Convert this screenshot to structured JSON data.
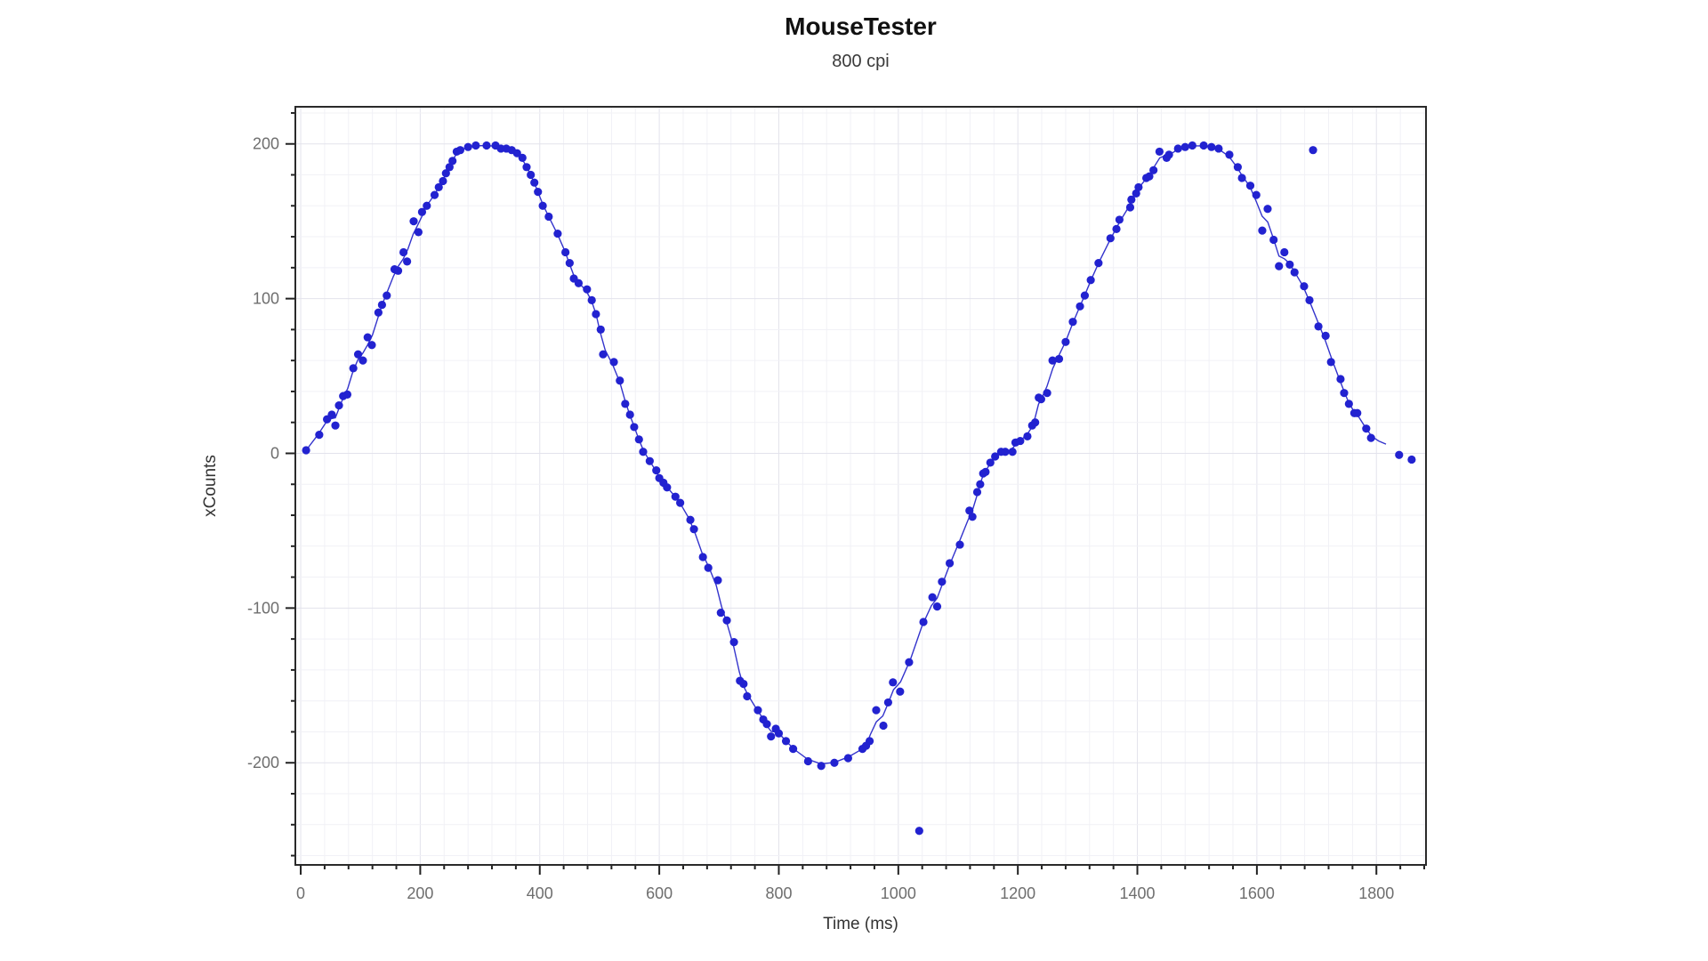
{
  "chart_data": {
    "type": "scatter",
    "title": "MouseTester",
    "subtitle": "800 cpi",
    "xlabel": "Time (ms)",
    "ylabel": "xCounts",
    "xlim": [
      -9,
      1883
    ],
    "ylim": [
      -266,
      224
    ],
    "x_major_step": 200,
    "x_minor_step": 40,
    "y_major_step": 100,
    "y_minor_step": 20,
    "x_tick_labels": [
      "0",
      "200",
      "400",
      "600",
      "800",
      "1000",
      "1200",
      "1400",
      "1600",
      "1800"
    ],
    "y_tick_labels": [
      "-200",
      "-100",
      "0",
      "100",
      "200"
    ],
    "grid": true,
    "legend": "none",
    "colors": {
      "series": "#2222d0",
      "line": "#3333cc",
      "grid_minor": "#f1f1f6",
      "grid_major": "#e3e3ec",
      "border": "#2a2a2a",
      "tick": "#222222",
      "tick_label": "#6e6e6e"
    },
    "series": [
      {
        "name": "xCounts",
        "marker": "circle",
        "points": [
          [
            9,
            2
          ],
          [
            31,
            12
          ],
          [
            44,
            22
          ],
          [
            52,
            25
          ],
          [
            58,
            18
          ],
          [
            64,
            31
          ],
          [
            71,
            37
          ],
          [
            78,
            38
          ],
          [
            88,
            55
          ],
          [
            96,
            64
          ],
          [
            104,
            60
          ],
          [
            112,
            75
          ],
          [
            119,
            70
          ],
          [
            130,
            91
          ],
          [
            136,
            96
          ],
          [
            144,
            102
          ],
          [
            157,
            119
          ],
          [
            163,
            118
          ],
          [
            172,
            130
          ],
          [
            178,
            124
          ],
          [
            189,
            150
          ],
          [
            197,
            143
          ],
          [
            203,
            156
          ],
          [
            211,
            160
          ],
          [
            224,
            167
          ],
          [
            231,
            172
          ],
          [
            238,
            176
          ],
          [
            243,
            181
          ],
          [
            249,
            185
          ],
          [
            254,
            189
          ],
          [
            261,
            195
          ],
          [
            267,
            196
          ],
          [
            280,
            198
          ],
          [
            293,
            199
          ],
          [
            311,
            199
          ],
          [
            326,
            199
          ],
          [
            335,
            197
          ],
          [
            344,
            197
          ],
          [
            353,
            196
          ],
          [
            362,
            194
          ],
          [
            371,
            191
          ],
          [
            378,
            185
          ],
          [
            385,
            180
          ],
          [
            391,
            175
          ],
          [
            397,
            169
          ],
          [
            405,
            160
          ],
          [
            415,
            153
          ],
          [
            430,
            142
          ],
          [
            443,
            130
          ],
          [
            450,
            123
          ],
          [
            457,
            113
          ],
          [
            465,
            110
          ],
          [
            479,
            106
          ],
          [
            487,
            99
          ],
          [
            494,
            90
          ],
          [
            502,
            80
          ],
          [
            506,
            64
          ],
          [
            524,
            59
          ],
          [
            534,
            47
          ],
          [
            543,
            32
          ],
          [
            551,
            25
          ],
          [
            558,
            17
          ],
          [
            566,
            9
          ],
          [
            573,
            1
          ],
          [
            584,
            -5
          ],
          [
            595,
            -11
          ],
          [
            600,
            -16
          ],
          [
            607,
            -19
          ],
          [
            613,
            -22
          ],
          [
            627,
            -28
          ],
          [
            635,
            -32
          ],
          [
            652,
            -43
          ],
          [
            658,
            -49
          ],
          [
            673,
            -67
          ],
          [
            682,
            -74
          ],
          [
            698,
            -82
          ],
          [
            703,
            -103
          ],
          [
            713,
            -108
          ],
          [
            725,
            -122
          ],
          [
            735,
            -147
          ],
          [
            741,
            -149
          ],
          [
            747,
            -157
          ],
          [
            765,
            -166
          ],
          [
            774,
            -172
          ],
          [
            780,
            -175
          ],
          [
            787,
            -183
          ],
          [
            795,
            -178
          ],
          [
            800,
            -181
          ],
          [
            812,
            -186
          ],
          [
            824,
            -191
          ],
          [
            849,
            -199
          ],
          [
            871,
            -202
          ],
          [
            893,
            -200
          ],
          [
            916,
            -197
          ],
          [
            940,
            -191
          ],
          [
            946,
            -189
          ],
          [
            952,
            -186
          ],
          [
            963,
            -166
          ],
          [
            975,
            -176
          ],
          [
            983,
            -161
          ],
          [
            991,
            -148
          ],
          [
            1003,
            -154
          ],
          [
            1018,
            -135
          ],
          [
            1042,
            -109
          ],
          [
            1057,
            -93
          ],
          [
            1065,
            -99
          ],
          [
            1073,
            -83
          ],
          [
            1086,
            -71
          ],
          [
            1103,
            -59
          ],
          [
            1119,
            -37
          ],
          [
            1124,
            -41
          ],
          [
            1132,
            -25
          ],
          [
            1137,
            -20
          ],
          [
            1142,
            -13
          ],
          [
            1146,
            -12
          ],
          [
            1154,
            -6
          ],
          [
            1162,
            -2
          ],
          [
            1172,
            1
          ],
          [
            1179,
            1
          ],
          [
            1191,
            1
          ],
          [
            1196,
            7
          ],
          [
            1204,
            8
          ],
          [
            1216,
            11
          ],
          [
            1224,
            18
          ],
          [
            1229,
            20
          ],
          [
            1235,
            36
          ],
          [
            1239,
            35
          ],
          [
            1249,
            39
          ],
          [
            1258,
            60
          ],
          [
            1269,
            61
          ],
          [
            1280,
            72
          ],
          [
            1292,
            85
          ],
          [
            1304,
            95
          ],
          [
            1312,
            102
          ],
          [
            1322,
            112
          ],
          [
            1335,
            123
          ],
          [
            1355,
            139
          ],
          [
            1365,
            145
          ],
          [
            1370,
            151
          ],
          [
            1388,
            159
          ],
          [
            1390,
            164
          ],
          [
            1398,
            168
          ],
          [
            1402,
            172
          ],
          [
            1415,
            178
          ],
          [
            1420,
            179
          ],
          [
            1427,
            183
          ],
          [
            1437,
            195
          ],
          [
            1449,
            191
          ],
          [
            1453,
            193
          ],
          [
            1468,
            197
          ],
          [
            1480,
            198
          ],
          [
            1492,
            199
          ],
          [
            1511,
            199
          ],
          [
            1524,
            198
          ],
          [
            1536,
            197
          ],
          [
            1554,
            193
          ],
          [
            1568,
            185
          ],
          [
            1575,
            178
          ],
          [
            1589,
            173
          ],
          [
            1599,
            167
          ],
          [
            1609,
            144
          ],
          [
            1618,
            158
          ],
          [
            1628,
            138
          ],
          [
            1637,
            121
          ],
          [
            1646,
            130
          ],
          [
            1655,
            122
          ],
          [
            1663,
            117
          ],
          [
            1679,
            108
          ],
          [
            1688,
            99
          ],
          [
            1703,
            82
          ],
          [
            1715,
            76
          ],
          [
            1724,
            59
          ],
          [
            1740,
            48
          ],
          [
            1746,
            39
          ],
          [
            1754,
            32
          ],
          [
            1763,
            26
          ],
          [
            1768,
            26
          ],
          [
            1783,
            16
          ],
          [
            1791,
            10
          ]
        ]
      }
    ],
    "outlier_points": [
      [
        1035,
        -244
      ],
      [
        1694,
        196
      ]
    ],
    "trailing_points": [
      [
        1838,
        -1
      ],
      [
        1859,
        -4
      ]
    ],
    "line_tail": [
      [
        1804,
        8
      ],
      [
        1816,
        6
      ]
    ]
  }
}
